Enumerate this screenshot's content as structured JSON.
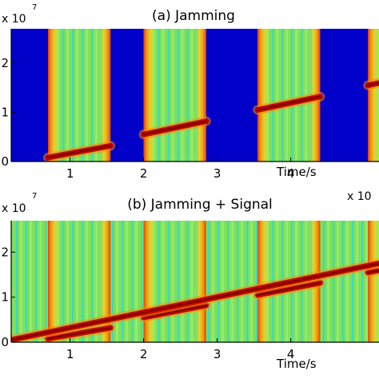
{
  "colors": {
    "background": "#ffffff",
    "blank": "#0000c8",
    "field": "#7fe05a",
    "field_stripe": "#9ff06e",
    "stripe": "#30d8cc",
    "edge_outer": "#ffd21e",
    "edge_inner": "#ff8a00",
    "edge_core": "#f03010",
    "chirp_outer": "#ff8a00",
    "chirp_core": "#c00000",
    "chirp_center": "#800000",
    "axis": "#000000"
  },
  "chart_data": [
    {
      "type": "heatmap",
      "title": "(a)  Jamming",
      "xlabel": "Time/s",
      "ylabel": "",
      "x_exponent_label": "",
      "y_exponent_label": "x 10",
      "y_exponent": "7",
      "xlim": [
        0.2,
        5.2
      ],
      "ylim": [
        0,
        2.7
      ],
      "xticks": [
        "1",
        "2",
        "3",
        "4"
      ],
      "yticks": [
        "0",
        "1",
        "2"
      ],
      "x_tick_values": [
        1,
        2,
        3,
        4
      ],
      "y_tick_values": [
        0,
        1,
        2
      ],
      "pulses": [
        {
          "start": 0.7,
          "end": 1.55
        },
        {
          "start": 2.0,
          "end": 2.85
        },
        {
          "start": 3.55,
          "end": 4.4
        },
        {
          "start": 5.05,
          "end": 5.9
        }
      ],
      "chirp_segments": [
        {
          "x0": 0.7,
          "y0": 0.08,
          "x1": 1.55,
          "y1": 0.32
        },
        {
          "x0": 2.0,
          "y0": 0.55,
          "x1": 2.85,
          "y1": 0.82
        },
        {
          "x0": 3.55,
          "y0": 1.05,
          "x1": 4.4,
          "y1": 1.32
        },
        {
          "x0": 5.05,
          "y0": 1.55,
          "x1": 5.9,
          "y1": 1.82
        }
      ],
      "signal": null
    },
    {
      "type": "heatmap",
      "title": "(b)  Jamming + Signal",
      "xlabel": "Time/s",
      "ylabel": "",
      "x_exponent_label": "x 10",
      "y_exponent_label": "x 10",
      "y_exponent": "7",
      "xlim": [
        0.2,
        5.2
      ],
      "ylim": [
        0,
        2.7
      ],
      "xticks": [
        "1",
        "2",
        "3",
        "4"
      ],
      "yticks": [
        "0",
        "1",
        "2"
      ],
      "x_tick_values": [
        1,
        2,
        3,
        4
      ],
      "y_tick_values": [
        0,
        1,
        2
      ],
      "pulses": [
        {
          "start": 0.7,
          "end": 1.55
        },
        {
          "start": 2.0,
          "end": 2.85
        },
        {
          "start": 3.55,
          "end": 4.4
        },
        {
          "start": 5.05,
          "end": 5.9
        }
      ],
      "chirp_segments": [
        {
          "x0": 0.7,
          "y0": 0.08,
          "x1": 1.55,
          "y1": 0.32
        },
        {
          "x0": 2.0,
          "y0": 0.55,
          "x1": 2.85,
          "y1": 0.82
        },
        {
          "x0": 3.55,
          "y0": 1.05,
          "x1": 4.4,
          "y1": 1.32
        },
        {
          "x0": 5.05,
          "y0": 1.55,
          "x1": 5.9,
          "y1": 1.82
        }
      ],
      "signal": {
        "x0": 0.2,
        "y0": 0.05,
        "x1": 5.2,
        "y1": 1.75
      }
    }
  ]
}
